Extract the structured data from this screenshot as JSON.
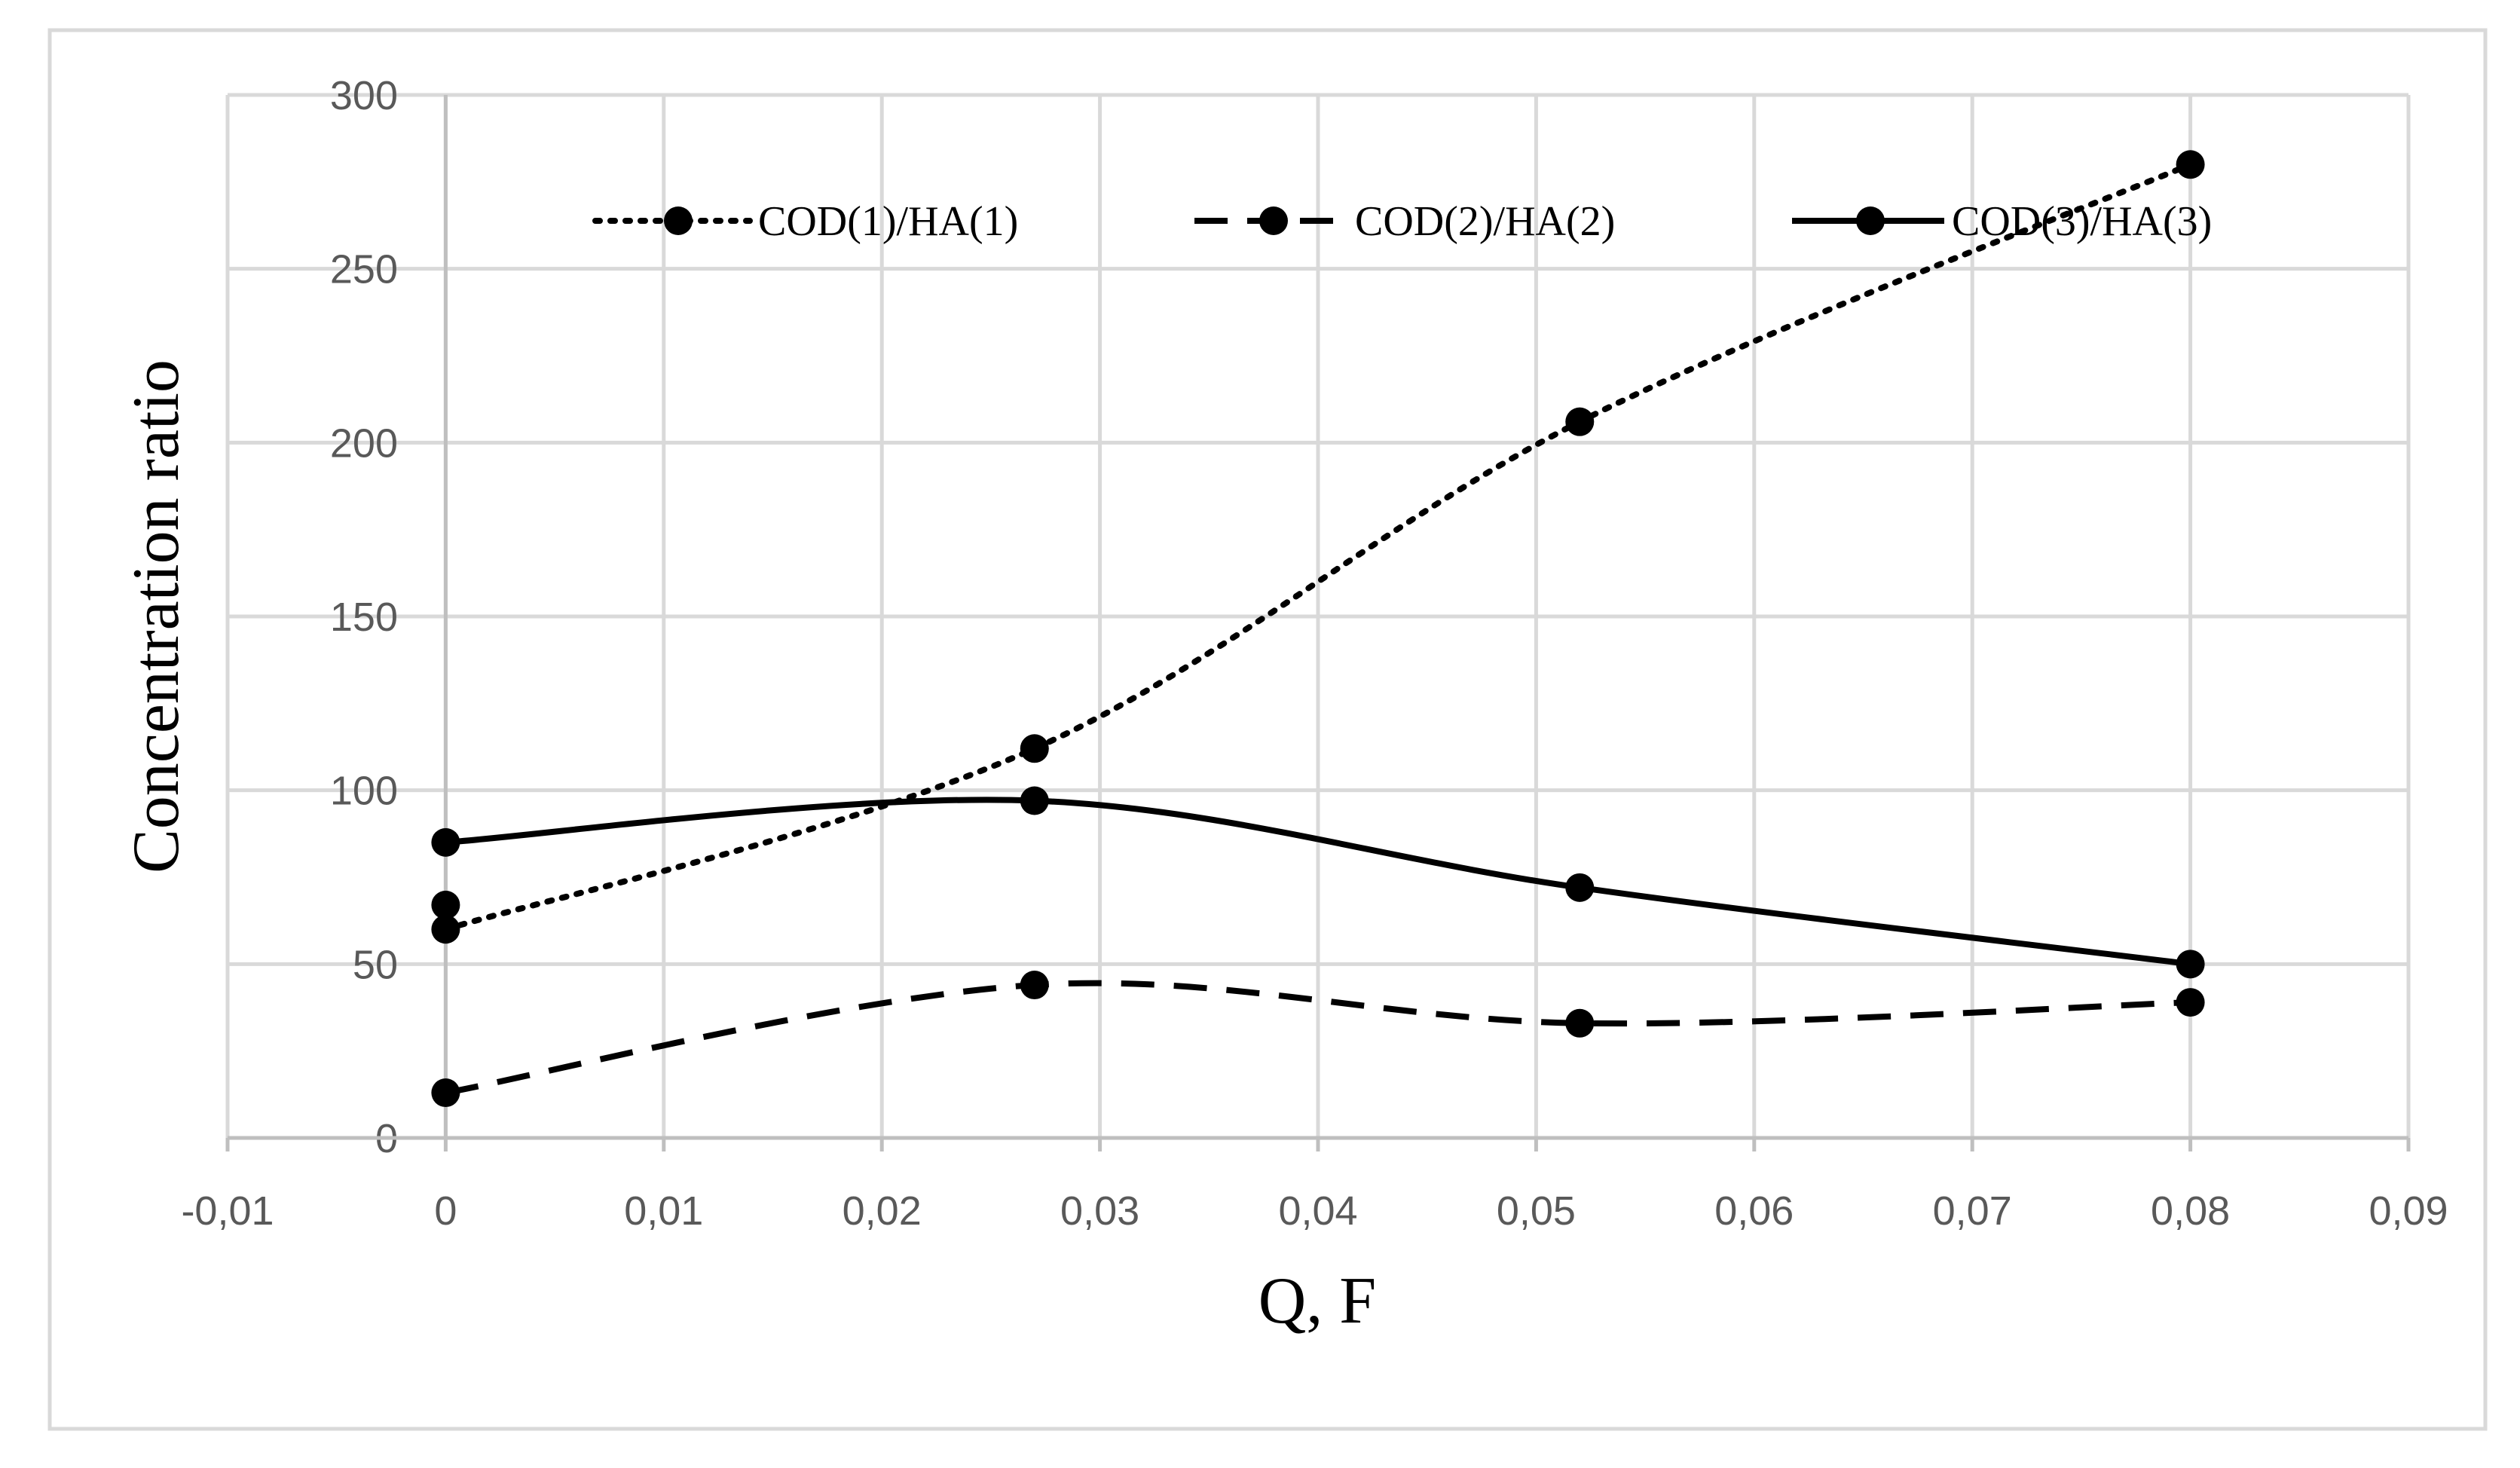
{
  "chart_data": {
    "type": "line",
    "title": "",
    "xlabel": "Q, F",
    "ylabel": "Concentration ratio",
    "xlim": [
      -0.01,
      0.09
    ],
    "ylim": [
      0,
      300
    ],
    "x_ticks": [
      -0.01,
      0,
      0.01,
      0.02,
      0.03,
      0.04,
      0.05,
      0.06,
      0.07,
      0.08,
      0.09
    ],
    "x_tick_labels": [
      "-0,01",
      "0",
      "0,01",
      "0,02",
      "0,03",
      "0,04",
      "0,05",
      "0,06",
      "0,07",
      "0,08",
      "0,09"
    ],
    "y_ticks": [
      0,
      50,
      100,
      150,
      200,
      250,
      300
    ],
    "y_tick_labels": [
      "0",
      "50",
      "100",
      "150",
      "200",
      "250",
      "300"
    ],
    "grid": true,
    "legend_position": "top",
    "series": [
      {
        "name": "COD(1)/HA(1)",
        "line_style": "dotted",
        "color": "#000000",
        "x": [
          0,
          0,
          0.027,
          0.052,
          0.08
        ],
        "y": [
          60,
          67,
          112,
          206,
          280
        ]
      },
      {
        "name": "COD(2)/HA(2)",
        "line_style": "dashed",
        "color": "#000000",
        "x": [
          0,
          0.027,
          0.052,
          0.08
        ],
        "y": [
          13,
          44,
          33,
          39
        ]
      },
      {
        "name": "COD(3)/HA(3)",
        "line_style": "solid",
        "color": "#000000",
        "x": [
          0,
          0.027,
          0.052,
          0.08
        ],
        "y": [
          85,
          97,
          72,
          50
        ]
      }
    ]
  }
}
